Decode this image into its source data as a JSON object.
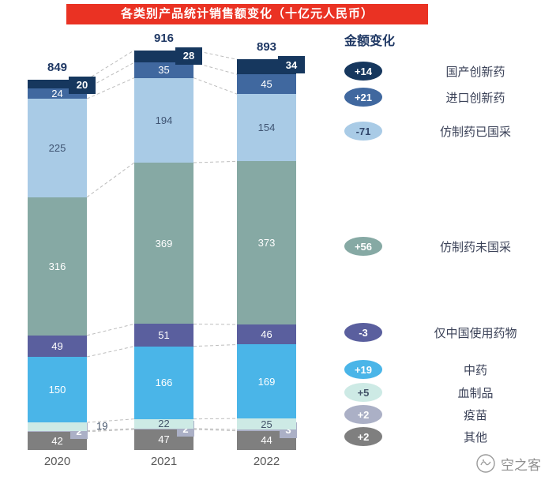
{
  "title": "各类别产品统计销售额变化（十亿元人民币）",
  "watermark": "空之客",
  "legend": {
    "header": "金额变化",
    "items": [
      {
        "value": "+14",
        "label": "国产创新药",
        "color": "#16375e",
        "text_color": "#ffffff"
      },
      {
        "value": "+21",
        "label": "进口创新药",
        "color": "#40689f",
        "text_color": "#ffffff"
      },
      {
        "value": "-71",
        "label": "仿制药已国采",
        "color": "#a9cbe6",
        "text_color": "#31466b"
      },
      {
        "value": "+56",
        "label": "仿制药未国采",
        "color": "#86a9a4",
        "text_color": "#ffffff"
      },
      {
        "value": "-3",
        "label": "仅中国使用药物",
        "color": "#5a5f9e",
        "text_color": "#ffffff"
      },
      {
        "value": "+19",
        "label": "中药",
        "color": "#4ab5e8",
        "text_color": "#ffffff"
      },
      {
        "value": "+5",
        "label": "血制品",
        "color": "#cdeae5",
        "text_color": "#44546a"
      },
      {
        "value": "+2",
        "label": "疫苗",
        "color": "#abb0c6",
        "text_color": "#ffffff"
      },
      {
        "value": "+2",
        "label": "其他",
        "color": "#7f7f7f",
        "text_color": "#ffffff"
      }
    ]
  },
  "chart_data": {
    "type": "bar",
    "stacked": true,
    "stack_order": "bottom_to_top",
    "title": "各类别产品统计销售额变化（十亿元人民币）",
    "categories": [
      "2020",
      "2021",
      "2022"
    ],
    "totals": [
      849,
      916,
      893
    ],
    "series": [
      {
        "name": "其他",
        "values": [
          42,
          47,
          44
        ],
        "color": "#7f7f7f",
        "change": "+2"
      },
      {
        "name": "疫苗",
        "values": [
          2,
          2,
          3
        ],
        "color": "#abb0c6",
        "change": "+2",
        "label_modes": [
          "box-right",
          "box-right",
          "box-right"
        ]
      },
      {
        "name": "血制品",
        "values": [
          19,
          22,
          25
        ],
        "color": "#cdeae5",
        "change": "+5",
        "label_color": "#44546a",
        "label_modes": [
          "leader-right",
          "inside",
          "inside"
        ]
      },
      {
        "name": "中药",
        "values": [
          150,
          166,
          169
        ],
        "color": "#4ab5e8",
        "change": "+19"
      },
      {
        "name": "仅中国使用药物",
        "values": [
          49,
          51,
          46
        ],
        "color": "#5a5f9e",
        "change": "-3"
      },
      {
        "name": "仿制药未国采",
        "values": [
          316,
          369,
          373
        ],
        "color": "#86a9a4",
        "change": "+56"
      },
      {
        "name": "仿制药已国采",
        "values": [
          225,
          194,
          154
        ],
        "color": "#a9cbe6",
        "change": "-71",
        "label_color": "#3f5472"
      },
      {
        "name": "进口创新药",
        "values": [
          24,
          35,
          45
        ],
        "color": "#40689f",
        "change": "+21"
      },
      {
        "name": "国产创新药",
        "values": [
          20,
          28,
          34
        ],
        "color": "#16375e",
        "change": "+14",
        "label_modes": [
          "box-top",
          "box-top",
          "box-top"
        ]
      }
    ],
    "legend_position": "right",
    "grid": false
  }
}
